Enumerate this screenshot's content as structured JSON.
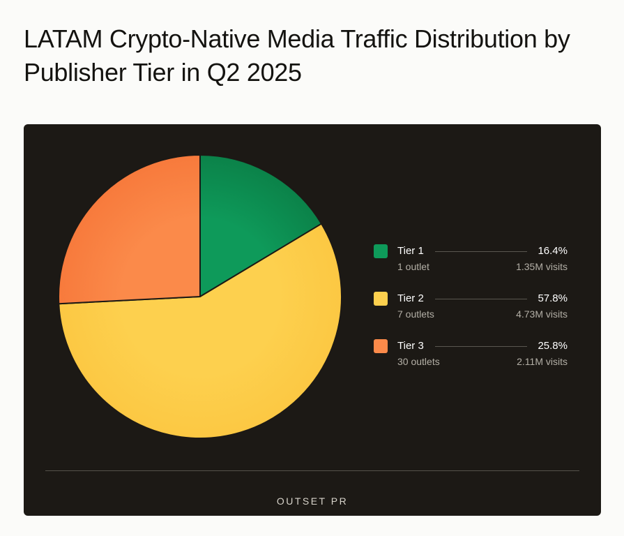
{
  "title": "LATAM Crypto-Native Media Traffic Distribution by Publisher Tier in Q2 2025",
  "brand": "OUTSET PR",
  "colors": {
    "background": "#fbfbf9",
    "card": "#1c1915",
    "tier1": "#0e9a5a",
    "tier2": "#fdd04e",
    "tier3": "#fb8a4a"
  },
  "chart_data": {
    "type": "pie",
    "title": "LATAM Crypto-Native Media Traffic Distribution by Publisher Tier in Q2 2025",
    "legend_position": "right",
    "slices": [
      {
        "label": "Tier 1",
        "value": 16.4,
        "percent": "16.4%",
        "outlets": "1 outlet",
        "visits": "1.35M visits",
        "color": "#0e9a5a",
        "dark": "#0b8249"
      },
      {
        "label": "Tier 2",
        "value": 57.8,
        "percent": "57.8%",
        "outlets": "7 outlets",
        "visits": "4.73M visits",
        "color": "#fdd04e",
        "dark": "#fcc843"
      },
      {
        "label": "Tier 3",
        "value": 25.8,
        "percent": "25.8%",
        "outlets": "30 outlets",
        "visits": "2.11M visits",
        "color": "#fb8a4a",
        "dark": "#f77a3c"
      }
    ]
  }
}
